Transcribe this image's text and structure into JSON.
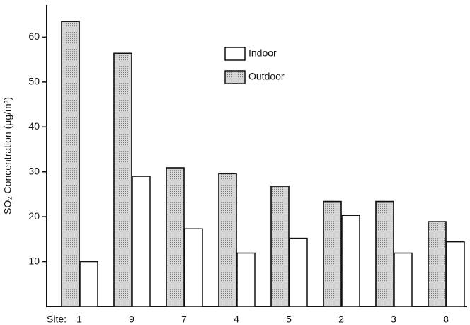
{
  "chart_data": {
    "type": "bar",
    "y_label": "SO₂ Concentration (μg/m³)",
    "x_label": "Site:",
    "categories": [
      "1",
      "9",
      "7",
      "4",
      "5",
      "2",
      "3",
      "8"
    ],
    "series": [
      {
        "name": "Indoor",
        "color": "#ffffff",
        "values": [
          10,
          29,
          17.3,
          11.9,
          15.2,
          20.3,
          11.9,
          14.4
        ]
      },
      {
        "name": "Outdoor",
        "color": "#d4d4d4",
        "values": [
          63.5,
          56.4,
          30.9,
          29.6,
          26.8,
          23.4,
          23.4,
          18.9
        ]
      }
    ],
    "ylim": [
      0,
      67
    ],
    "yticks": [
      10,
      20,
      30,
      40,
      50,
      60
    ]
  }
}
